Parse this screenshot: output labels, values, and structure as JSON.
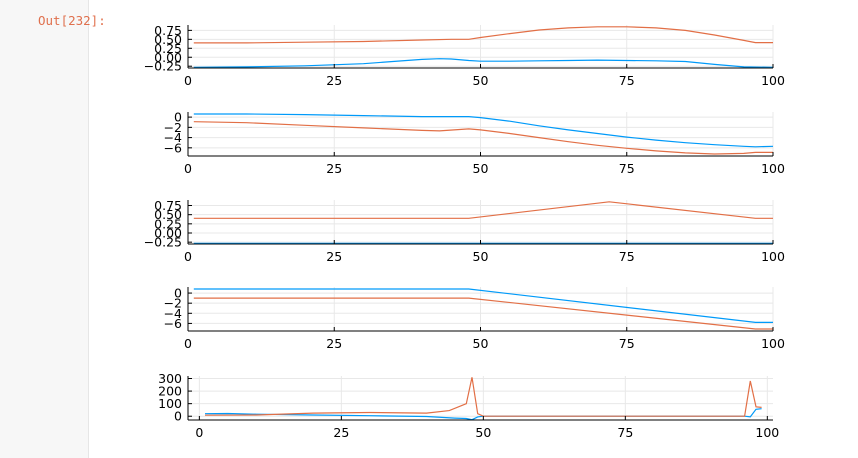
{
  "cell": {
    "prompt": "Out[232]:"
  },
  "colors": {
    "series1": "#009af9",
    "series2": "#e26f46",
    "grid": "#e8e8e8",
    "axis": "#000000"
  },
  "chart_data": [
    {
      "type": "line",
      "xlim": [
        0,
        100
      ],
      "ylim": [
        -0.3,
        0.9
      ],
      "xticks": [
        0,
        25,
        50,
        75,
        100
      ],
      "yticks": [
        -0.25,
        0,
        0.25,
        0.5,
        0.75
      ],
      "yticklabels": [
        "−0.25",
        "0.00",
        "0.25",
        "0.50",
        "0.75"
      ],
      "grid": true,
      "series": [
        {
          "x": [
            1,
            10,
            20,
            30,
            35,
            40,
            43,
            45,
            48,
            50,
            55,
            60,
            65,
            70,
            75,
            80,
            85,
            90,
            95,
            100
          ],
          "y": [
            -0.28,
            -0.27,
            -0.24,
            -0.18,
            -0.12,
            -0.06,
            -0.04,
            -0.05,
            -0.09,
            -0.11,
            -0.11,
            -0.1,
            -0.09,
            -0.08,
            -0.09,
            -0.1,
            -0.12,
            -0.2,
            -0.27,
            -0.28
          ]
        },
        {
          "x": [
            1,
            10,
            20,
            30,
            40,
            45,
            48,
            50,
            55,
            60,
            65,
            70,
            75,
            80,
            85,
            90,
            95,
            97,
            100
          ],
          "y": [
            0.4,
            0.4,
            0.42,
            0.44,
            0.48,
            0.5,
            0.5,
            0.55,
            0.66,
            0.76,
            0.82,
            0.85,
            0.85,
            0.82,
            0.75,
            0.62,
            0.47,
            0.41,
            0.41
          ]
        }
      ]
    },
    {
      "type": "line",
      "xlim": [
        0,
        100
      ],
      "ylim": [
        -7.6,
        1.0
      ],
      "xticks": [
        0,
        25,
        50,
        75,
        100
      ],
      "yticks": [
        0,
        -2,
        -4,
        -6
      ],
      "yticklabels": [
        "0",
        "−2",
        "−4",
        "−6"
      ],
      "grid": true,
      "series": [
        {
          "x": [
            1,
            10,
            20,
            30,
            40,
            48,
            50,
            55,
            60,
            65,
            70,
            75,
            80,
            85,
            90,
            95,
            97,
            100
          ],
          "y": [
            0.6,
            0.6,
            0.5,
            0.3,
            0.1,
            0.1,
            -0.1,
            -0.8,
            -1.7,
            -2.5,
            -3.2,
            -3.9,
            -4.5,
            -5.0,
            -5.4,
            -5.7,
            -5.8,
            -5.7
          ]
        },
        {
          "x": [
            1,
            10,
            20,
            30,
            40,
            43,
            48,
            50,
            55,
            60,
            65,
            70,
            75,
            80,
            85,
            90,
            95,
            97,
            100
          ],
          "y": [
            -0.9,
            -1.1,
            -1.6,
            -2.1,
            -2.6,
            -2.7,
            -2.3,
            -2.5,
            -3.2,
            -4.0,
            -4.8,
            -5.5,
            -6.1,
            -6.6,
            -7.0,
            -7.2,
            -7.1,
            -6.9,
            -6.9
          ]
        }
      ]
    },
    {
      "type": "line",
      "xlim": [
        0,
        100
      ],
      "ylim": [
        -0.3,
        0.9
      ],
      "xticks": [
        0,
        25,
        50,
        75,
        100
      ],
      "yticks": [
        -0.25,
        0,
        0.25,
        0.5,
        0.75
      ],
      "yticklabels": [
        "−0.25",
        "0.00",
        "0.25",
        "0.50",
        "0.75"
      ],
      "grid": true,
      "series": [
        {
          "x": [
            1,
            100
          ],
          "y": [
            -0.28,
            -0.28
          ]
        },
        {
          "x": [
            1,
            48,
            72,
            97,
            100
          ],
          "y": [
            0.4,
            0.4,
            0.85,
            0.4,
            0.4
          ]
        }
      ]
    },
    {
      "type": "line",
      "xlim": [
        0,
        100
      ],
      "ylim": [
        -7.5,
        1.2
      ],
      "xticks": [
        0,
        25,
        50,
        75,
        100
      ],
      "yticks": [
        0,
        -2,
        -4,
        -6
      ],
      "yticklabels": [
        "0",
        "−2",
        "−4",
        "−6"
      ],
      "grid": true,
      "series": [
        {
          "x": [
            1,
            48,
            97,
            100
          ],
          "y": [
            0.8,
            0.8,
            -5.8,
            -5.8
          ]
        },
        {
          "x": [
            1,
            48,
            97,
            100
          ],
          "y": [
            -1.0,
            -1.0,
            -7.1,
            -7.1
          ]
        }
      ]
    },
    {
      "type": "line",
      "xlim": [
        -2,
        101
      ],
      "ylim": [
        -30,
        320
      ],
      "xticks": [
        0,
        25,
        50,
        75,
        100
      ],
      "yticks": [
        0,
        100,
        200,
        300
      ],
      "yticklabels": [
        "0",
        "100",
        "200",
        "300"
      ],
      "grid": true,
      "series": [
        {
          "x": [
            1,
            5,
            10,
            20,
            30,
            40,
            45,
            47,
            48,
            49,
            50,
            60,
            70,
            80,
            90,
            96,
            97,
            98,
            99
          ],
          "y": [
            20,
            22,
            16,
            10,
            4,
            -2,
            -15,
            -18,
            -28,
            -5,
            0,
            0,
            0,
            0,
            0,
            0,
            -5,
            55,
            60
          ]
        },
        {
          "x": [
            1,
            10,
            20,
            30,
            40,
            44,
            47,
            48,
            49,
            50,
            60,
            70,
            80,
            90,
            96,
            97,
            98,
            99
          ],
          "y": [
            8,
            10,
            25,
            30,
            25,
            45,
            100,
            310,
            20,
            0,
            0,
            0,
            0,
            0,
            0,
            280,
            75,
            70
          ]
        }
      ]
    }
  ]
}
